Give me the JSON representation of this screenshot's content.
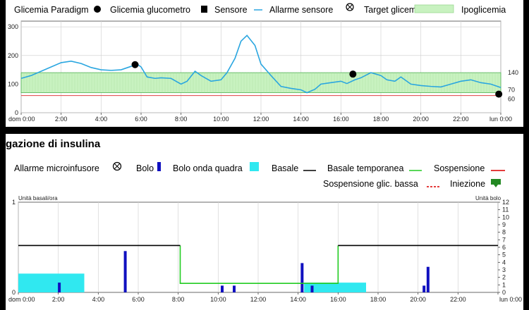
{
  "glucose_legend": {
    "paradigm": "Glicemia Paradigm",
    "meter": "Glicemia glucometro",
    "sensor": "Sensore",
    "sensor_alarm": "Allarme sensore",
    "target": "Target glicemico",
    "hypo": "Ipoglicemia"
  },
  "insulin_section": {
    "title": "gazione di insulina",
    "legend": {
      "pump_alarm": "Allarme microinfusore",
      "bolus": "Bolo",
      "square_bolus": "Bolo onda quadra",
      "basal": "Basale",
      "temp_basal": "Basale temporanea",
      "suspension": "Sospensione",
      "low_suspension": "Sospensione glic. bassa",
      "injection": "Iniezione"
    }
  },
  "colors": {
    "sensor": "#2aa6e0",
    "target_fill": "#c8f2c0",
    "target_border": "#4caf50",
    "hypo_line": "#e04040",
    "bolus": "#1010c0",
    "square_bolus": "#30e8f0",
    "basal": "#000000",
    "temp_basal": "#22cc22",
    "suspension": "#e02020",
    "injection": "#228822"
  },
  "chart_data": [
    {
      "type": "line",
      "x_ticks": [
        "dom 0:00",
        "2:00",
        "4:00",
        "6:00",
        "8:00",
        "10:00",
        "12:00",
        "14:00",
        "16:00",
        "18:00",
        "20:00",
        "22:00",
        "lun 0:00"
      ],
      "y_ticks": [
        0,
        100,
        200,
        300
      ],
      "ylim": [
        0,
        320
      ],
      "xlim_hours": [
        0,
        24
      ],
      "right_labels": [
        140,
        70,
        60
      ],
      "target_range": [
        70,
        140
      ],
      "hypo_threshold": 60,
      "series": [
        {
          "name": "Sensore",
          "x": [
            0,
            0.5,
            1,
            1.5,
            2,
            2.5,
            3,
            3.5,
            4,
            4.5,
            5,
            5.5,
            5.8,
            6,
            6.3,
            6.7,
            7,
            7.5,
            8,
            8.3,
            8.7,
            9,
            9.5,
            10,
            10.3,
            10.7,
            11,
            11.3,
            11.7,
            12,
            12.5,
            13,
            13.5,
            14,
            14.3,
            14.7,
            15,
            15.5,
            16,
            16.3,
            16.7,
            17,
            17.5,
            18,
            18.3,
            18.7,
            19,
            19.5,
            20,
            20.5,
            21,
            21.5,
            22,
            22.5,
            23,
            23.5,
            24
          ],
          "y": [
            120,
            130,
            145,
            160,
            175,
            180,
            172,
            158,
            150,
            148,
            150,
            162,
            170,
            160,
            125,
            120,
            122,
            120,
            100,
            110,
            145,
            130,
            110,
            115,
            140,
            190,
            250,
            270,
            235,
            170,
            130,
            92,
            85,
            80,
            70,
            82,
            100,
            105,
            110,
            102,
            115,
            122,
            140,
            130,
            115,
            110,
            125,
            100,
            95,
            92,
            90,
            100,
            110,
            115,
            105,
            100,
            88
          ]
        },
        {
          "name": "Glicemia glucometro",
          "x": [
            5.7,
            16.6,
            23.9
          ],
          "y": [
            168,
            135,
            65
          ]
        }
      ]
    },
    {
      "type": "bar",
      "left_axis_label": "Unità basali/ora",
      "right_axis_label": "Unità bolo",
      "left_ticks": [
        0,
        1
      ],
      "right_ticks": [
        0,
        1,
        2,
        3,
        4,
        5,
        6,
        7,
        8,
        9,
        10,
        11,
        12
      ],
      "x_ticks": [
        "dom 0:00",
        "2:00",
        "4:00",
        "6:00",
        "8:00",
        "10:00",
        "12:00",
        "14:00",
        "16:00",
        "18:00",
        "20:00",
        "22:00",
        "lun 0:00"
      ],
      "basal": {
        "x": [
          0,
          8.1,
          8.1,
          16,
          16,
          24
        ],
        "y": [
          0.52,
          0.52,
          0.52,
          0.52,
          0.52,
          0.52
        ],
        "segments": [
          [
            0,
            8.1
          ],
          [
            16,
            24
          ]
        ]
      },
      "temp_basal": {
        "x": [
          8.1,
          8.1,
          8.2,
          16,
          16
        ],
        "y": [
          0.52,
          0.1,
          0.1,
          0.1,
          0.52
        ]
      },
      "square_bolus": [
        {
          "start": 0,
          "end": 3.3,
          "units": 2.5
        },
        {
          "start": 14.3,
          "end": 17.4,
          "units": 1.3
        }
      ],
      "bolus": [
        {
          "time": 2.05,
          "units": 1.3
        },
        {
          "time": 5.35,
          "units": 5.5
        },
        {
          "time": 10.2,
          "units": 0.9
        },
        {
          "time": 10.8,
          "units": 0.9
        },
        {
          "time": 14.2,
          "units": 3.9
        },
        {
          "time": 14.7,
          "units": 0.9
        },
        {
          "time": 20.3,
          "units": 0.9
        },
        {
          "time": 20.5,
          "units": 3.4
        }
      ]
    }
  ]
}
